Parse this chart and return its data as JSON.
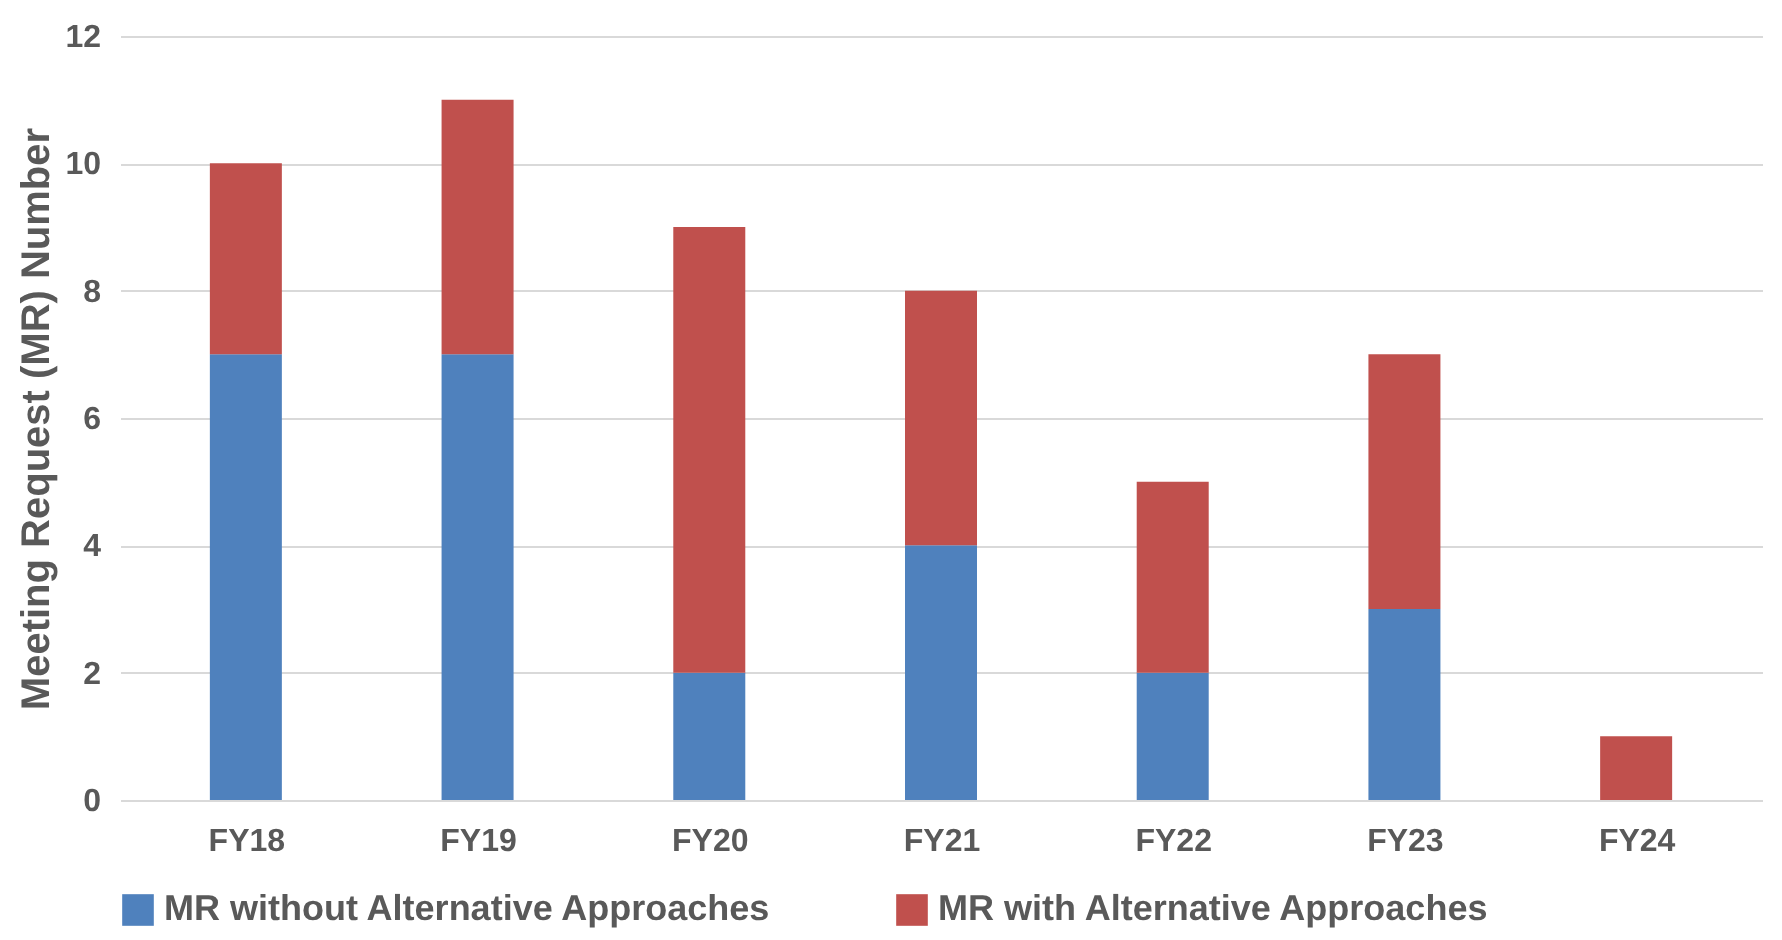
{
  "chart_data": {
    "type": "bar",
    "stacked": true,
    "ylabel": "Meeting Request (MR) Number",
    "categories": [
      "FY18",
      "FY19",
      "FY20",
      "FY21",
      "FY22",
      "FY23",
      "FY24"
    ],
    "series": [
      {
        "name": "MR without Alternative Approaches",
        "color": "#4f81bd",
        "values": [
          7,
          7,
          2,
          4,
          2,
          3,
          0
        ]
      },
      {
        "name": "MR with Alternative Approaches",
        "color": "#c0504d",
        "values": [
          3,
          4,
          7,
          4,
          3,
          4,
          1
        ]
      }
    ],
    "ylim": [
      0,
      12
    ],
    "yticks": [
      0,
      2,
      4,
      6,
      8,
      10,
      12
    ],
    "grid": "y",
    "legend": "bottom"
  }
}
